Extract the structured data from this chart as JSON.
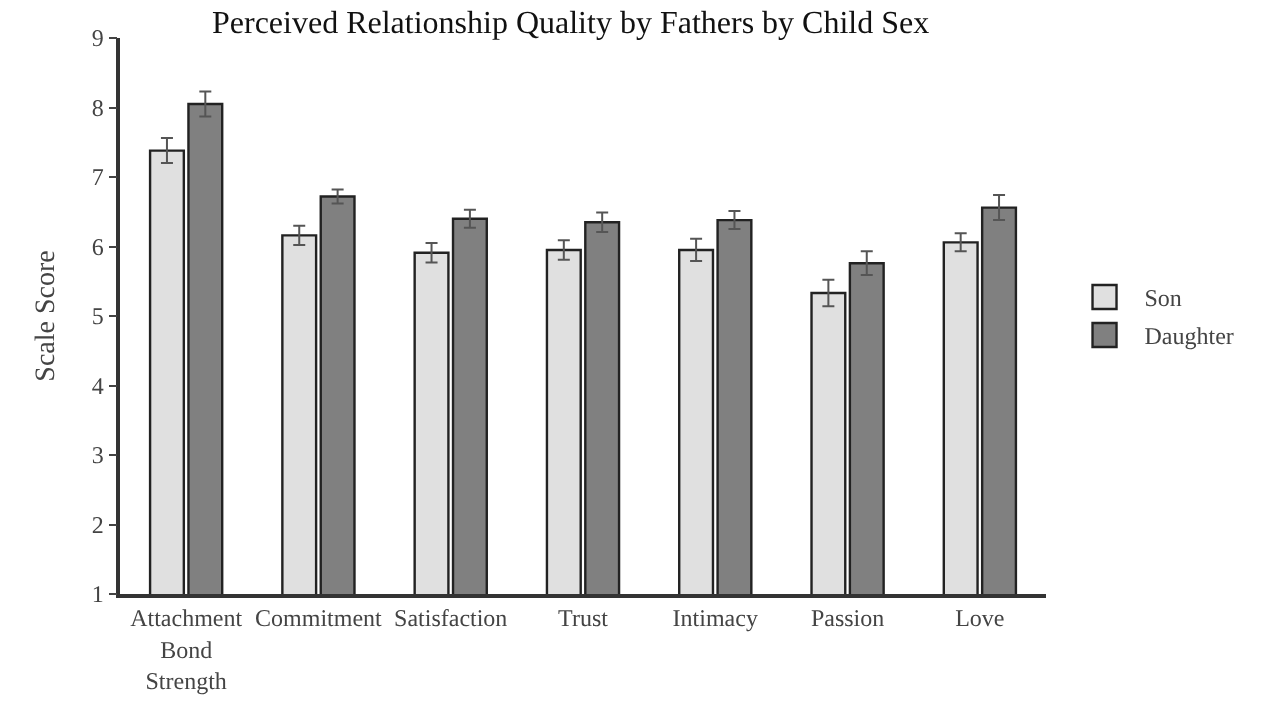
{
  "chart_data": {
    "type": "bar",
    "title": "Perceived Relationship Quality by Fathers by Child Sex",
    "ylabel": "Scale Score",
    "categories": [
      "Attachment Bond Strength",
      "Commitment",
      "Satisfaction",
      "Trust",
      "Intimacy",
      "Passion",
      "Love"
    ],
    "series": [
      {
        "name": "Son",
        "color": "#e0e0e0",
        "values": [
          7.38,
          6.16,
          5.91,
          5.95,
          5.95,
          5.33,
          6.06
        ],
        "errors": [
          0.18,
          0.14,
          0.14,
          0.14,
          0.16,
          0.19,
          0.13
        ]
      },
      {
        "name": "Daughter",
        "color": "#808080",
        "values": [
          8.05,
          6.72,
          6.4,
          6.35,
          6.38,
          5.76,
          6.56
        ],
        "errors": [
          0.18,
          0.1,
          0.13,
          0.14,
          0.13,
          0.17,
          0.18
        ]
      }
    ],
    "ylim": [
      1,
      9
    ],
    "yticks": [
      1,
      2,
      3,
      4,
      5,
      6,
      7,
      8,
      9
    ],
    "grid": false,
    "legend": "right"
  }
}
